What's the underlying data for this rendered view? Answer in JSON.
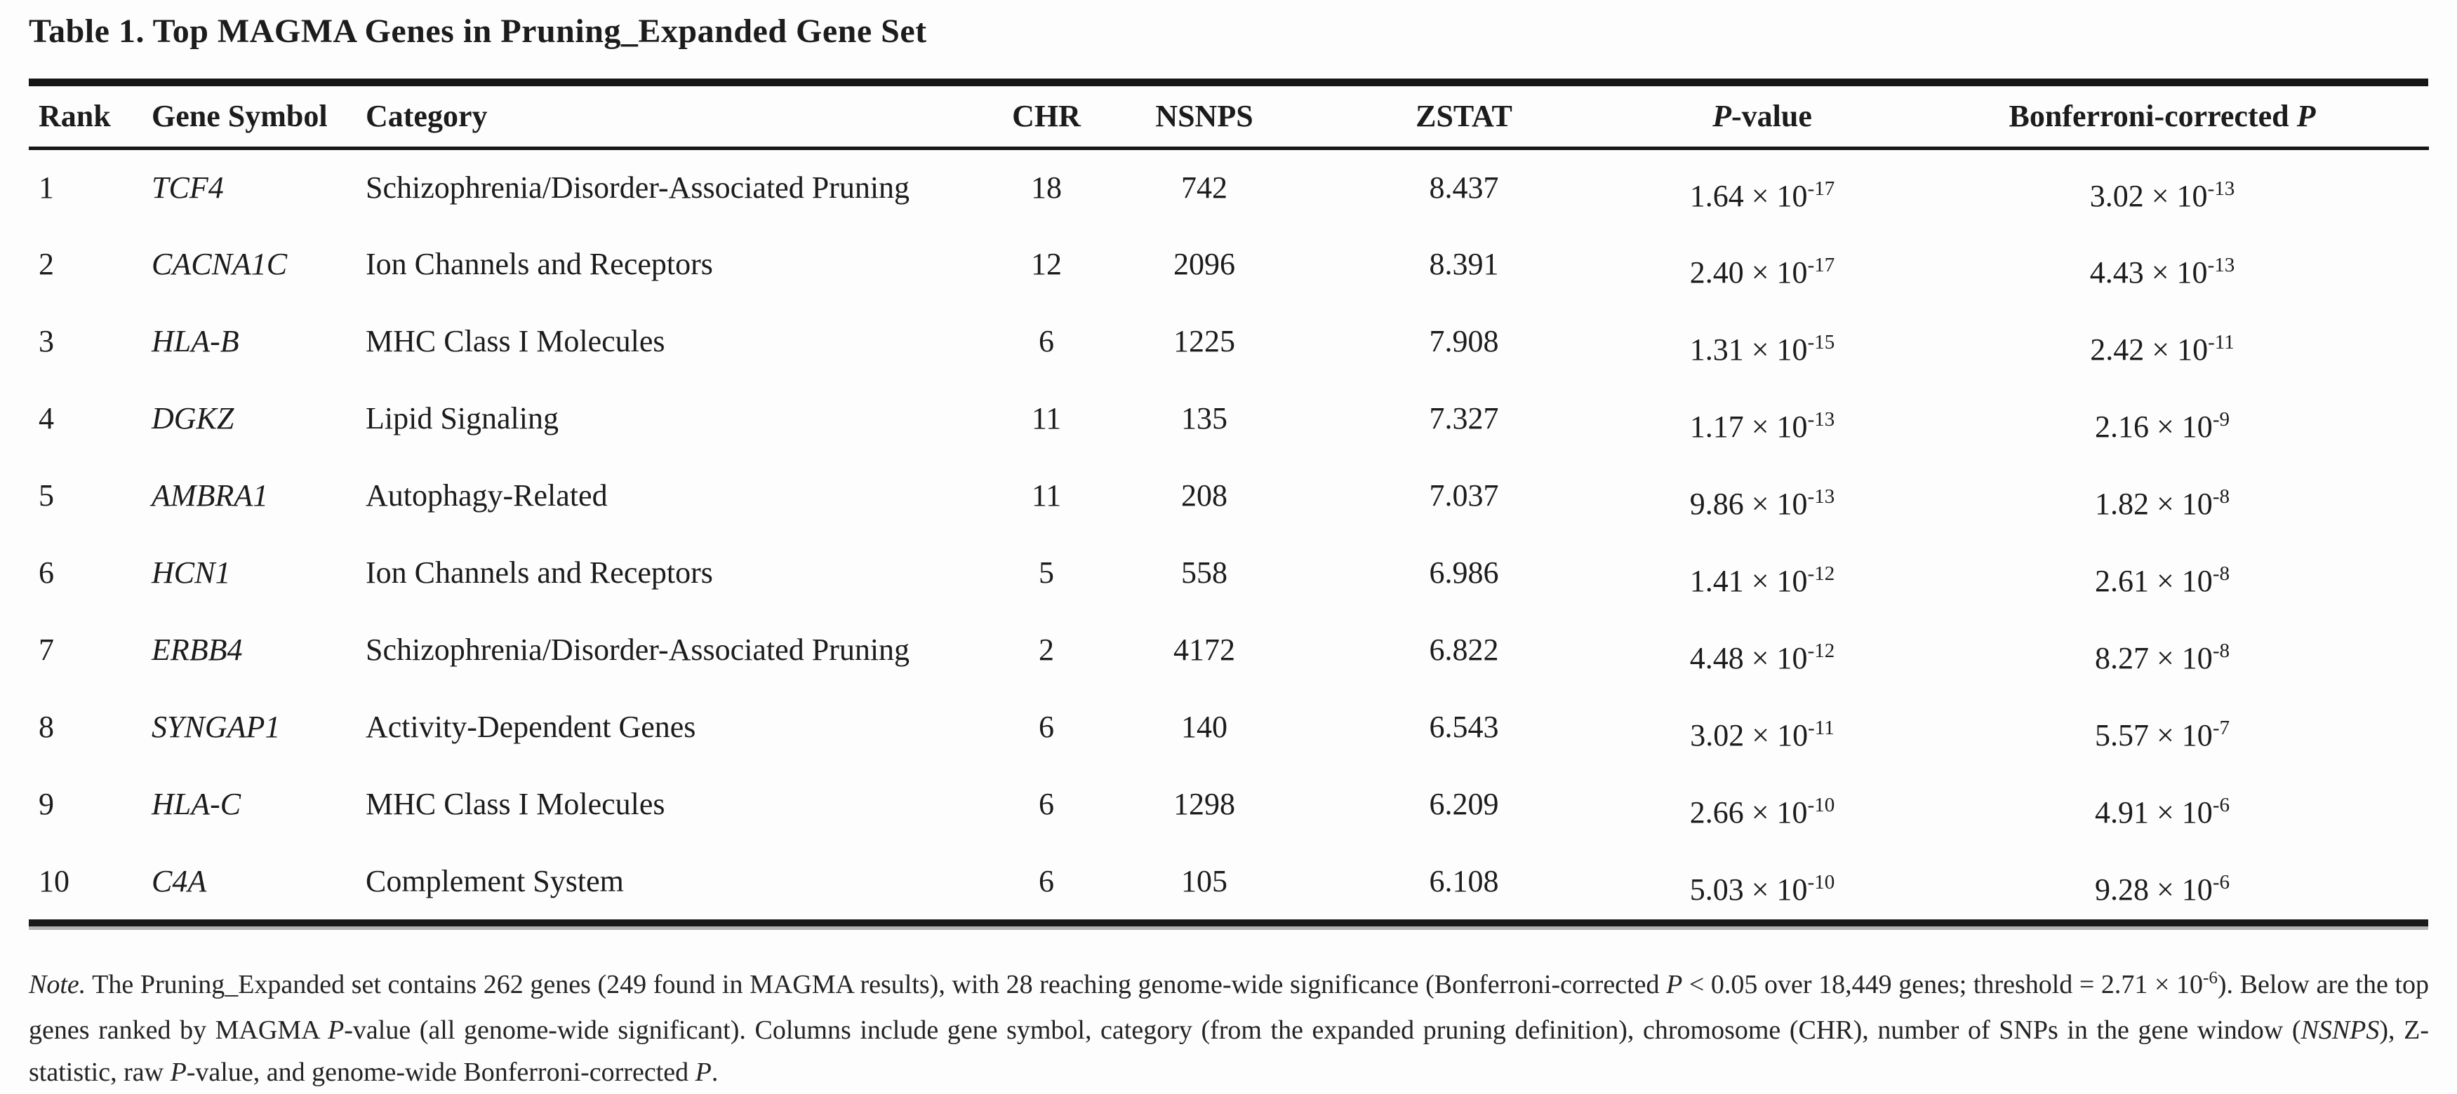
{
  "page": {
    "title": "Table 1. Top MAGMA Genes in Pruning_Expanded Gene Set"
  },
  "table": {
    "columns": [
      {
        "key": "rank",
        "segs": [
          {
            "t": "Rank"
          }
        ]
      },
      {
        "key": "gene",
        "segs": [
          {
            "t": "Gene Symbol"
          }
        ]
      },
      {
        "key": "category",
        "segs": [
          {
            "t": "Category"
          }
        ]
      },
      {
        "key": "chr",
        "segs": [
          {
            "t": "CHR"
          }
        ]
      },
      {
        "key": "nsnps",
        "segs": [
          {
            "t": "NSNPS"
          }
        ]
      },
      {
        "key": "zstat",
        "segs": [
          {
            "t": "ZSTAT"
          }
        ]
      },
      {
        "key": "pvalue",
        "segs": [
          {
            "t": "P",
            "i": true
          },
          {
            "t": "-value"
          }
        ]
      },
      {
        "key": "bonferroni",
        "segs": [
          {
            "t": "Bonferroni-corrected "
          },
          {
            "t": "P",
            "i": true
          }
        ]
      }
    ],
    "rows": [
      {
        "rank": "1",
        "gene": "TCF4",
        "category": "Schizophrenia/Disorder-Associated Pruning",
        "chr": "18",
        "nsnps": "742",
        "zstat": "8.437",
        "pvalue": {
          "base": "1.64 × 10",
          "exp": "-17"
        },
        "bonferroni": {
          "base": "3.02 × 10",
          "exp": "-13"
        }
      },
      {
        "rank": "2",
        "gene": "CACNA1C",
        "category": "Ion Channels and Receptors",
        "chr": "12",
        "nsnps": "2096",
        "zstat": "8.391",
        "pvalue": {
          "base": "2.40 × 10",
          "exp": "-17"
        },
        "bonferroni": {
          "base": "4.43 × 10",
          "exp": "-13"
        }
      },
      {
        "rank": "3",
        "gene": "HLA-B",
        "category": "MHC Class I Molecules",
        "chr": "6",
        "nsnps": "1225",
        "zstat": "7.908",
        "pvalue": {
          "base": "1.31 × 10",
          "exp": "-15"
        },
        "bonferroni": {
          "base": "2.42 × 10",
          "exp": "-11"
        }
      },
      {
        "rank": "4",
        "gene": "DGKZ",
        "category": "Lipid Signaling",
        "chr": "11",
        "nsnps": "135",
        "zstat": "7.327",
        "pvalue": {
          "base": "1.17 × 10",
          "exp": "-13"
        },
        "bonferroni": {
          "base": "2.16 × 10",
          "exp": "-9"
        }
      },
      {
        "rank": "5",
        "gene": "AMBRA1",
        "category": "Autophagy-Related",
        "chr": "11",
        "nsnps": "208",
        "zstat": "7.037",
        "pvalue": {
          "base": "9.86 × 10",
          "exp": "-13"
        },
        "bonferroni": {
          "base": "1.82 × 10",
          "exp": "-8"
        }
      },
      {
        "rank": "6",
        "gene": "HCN1",
        "category": "Ion Channels and Receptors",
        "chr": "5",
        "nsnps": "558",
        "zstat": "6.986",
        "pvalue": {
          "base": "1.41 × 10",
          "exp": "-12"
        },
        "bonferroni": {
          "base": "2.61 × 10",
          "exp": "-8"
        }
      },
      {
        "rank": "7",
        "gene": "ERBB4",
        "category": "Schizophrenia/Disorder-Associated Pruning",
        "chr": "2",
        "nsnps": "4172",
        "zstat": "6.822",
        "pvalue": {
          "base": "4.48 × 10",
          "exp": "-12"
        },
        "bonferroni": {
          "base": "8.27 × 10",
          "exp": "-8"
        }
      },
      {
        "rank": "8",
        "gene": "SYNGAP1",
        "category": "Activity-Dependent Genes",
        "chr": "6",
        "nsnps": "140",
        "zstat": "6.543",
        "pvalue": {
          "base": "3.02 × 10",
          "exp": "-11"
        },
        "bonferroni": {
          "base": "5.57 × 10",
          "exp": "-7"
        }
      },
      {
        "rank": "9",
        "gene": "HLA-C",
        "category": "MHC Class I Molecules",
        "chr": "6",
        "nsnps": "1298",
        "zstat": "6.209",
        "pvalue": {
          "base": "2.66 × 10",
          "exp": "-10"
        },
        "bonferroni": {
          "base": "4.91 × 10",
          "exp": "-6"
        }
      },
      {
        "rank": "10",
        "gene": "C4A",
        "category": "Complement System",
        "chr": "6",
        "nsnps": "105",
        "zstat": "6.108",
        "pvalue": {
          "base": "5.03 × 10",
          "exp": "-10"
        },
        "bonferroni": {
          "base": "9.28 × 10",
          "exp": "-6"
        }
      }
    ]
  },
  "note": {
    "segments": [
      {
        "t": "Note.",
        "i": true
      },
      {
        "t": " The Pruning_Expanded set contains 262 genes (249 found in MAGMA results), with 28 reaching genome-wide significance (Bonferroni-corrected "
      },
      {
        "t": "P",
        "i": true
      },
      {
        "t": " < 0.05 over 18,449 genes; threshold = 2.71 × 10"
      },
      {
        "t": "-6",
        "sup": true
      },
      {
        "t": "). Below are the top genes ranked by MAGMA "
      },
      {
        "t": "P",
        "i": true
      },
      {
        "t": "-value (all genome-wide significant). Columns include gene symbol, category (from the expanded pruning definition), chromosome (CHR), number of SNPs in the gene window ("
      },
      {
        "t": "NSNPS",
        "i": true
      },
      {
        "t": "), Z-statistic, raw "
      },
      {
        "t": "P",
        "i": true
      },
      {
        "t": "-value, and genome-wide Bonferroni-corrected "
      },
      {
        "t": "P",
        "i": true
      },
      {
        "t": "."
      }
    ]
  }
}
